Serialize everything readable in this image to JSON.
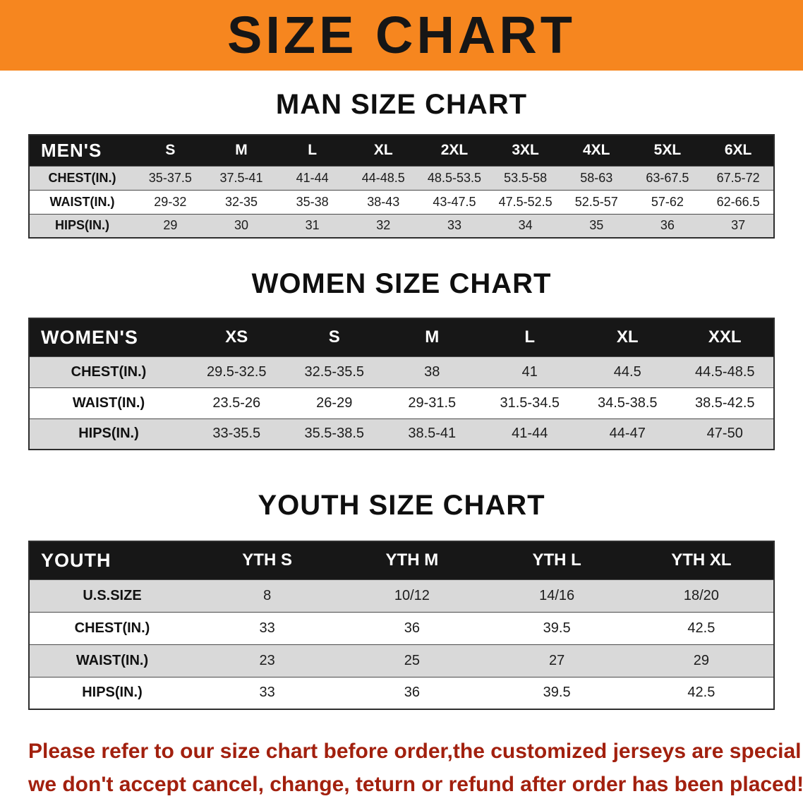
{
  "banner": {
    "title": "SIZE CHART"
  },
  "colors": {
    "banner_bg": "#F6861F",
    "banner_text": "#161616",
    "table_header_bg": "#171717",
    "table_header_text": "#FFFFFF",
    "shaded_row_bg": "#D9D9D9",
    "plain_row_bg": "#FFFFFF",
    "notice_text": "#A2200E"
  },
  "sections": [
    {
      "id": "men",
      "heading": "MAN SIZE CHART",
      "table": {
        "header": [
          "MEN'S",
          "S",
          "M",
          "L",
          "XL",
          "2XL",
          "3XL",
          "4XL",
          "5XL",
          "6XL"
        ],
        "rows": [
          {
            "label": "CHEST(IN.)",
            "values": [
              "35-37.5",
              "37.5-41",
              "41-44",
              "44-48.5",
              "48.5-53.5",
              "53.5-58",
              "58-63",
              "63-67.5",
              "67.5-72"
            ]
          },
          {
            "label": "WAIST(IN.)",
            "values": [
              "29-32",
              "32-35",
              "35-38",
              "38-43",
              "43-47.5",
              "47.5-52.5",
              "52.5-57",
              "57-62",
              "62-66.5"
            ]
          },
          {
            "label": "HIPS(IN.)",
            "values": [
              "29",
              "30",
              "31",
              "32",
              "33",
              "34",
              "35",
              "36",
              "37"
            ]
          }
        ]
      }
    },
    {
      "id": "women",
      "heading": "WOMEN SIZE CHART",
      "table": {
        "header": [
          "WOMEN'S",
          "XS",
          "S",
          "M",
          "L",
          "XL",
          "XXL"
        ],
        "rows": [
          {
            "label": "CHEST(IN.)",
            "values": [
              "29.5-32.5",
              "32.5-35.5",
              "38",
              "41",
              "44.5",
              "44.5-48.5"
            ]
          },
          {
            "label": "WAIST(IN.)",
            "values": [
              "23.5-26",
              "26-29",
              "29-31.5",
              "31.5-34.5",
              "34.5-38.5",
              "38.5-42.5"
            ]
          },
          {
            "label": "HIPS(IN.)",
            "values": [
              "33-35.5",
              "35.5-38.5",
              "38.5-41",
              "41-44",
              "44-47",
              "47-50"
            ]
          }
        ]
      }
    },
    {
      "id": "youth",
      "heading": "YOUTH SIZE CHART",
      "table": {
        "header": [
          "YOUTH",
          "YTH S",
          "YTH M",
          "YTH L",
          "YTH XL"
        ],
        "rows": [
          {
            "label": "U.S.SIZE",
            "values": [
              "8",
              "10/12",
              "14/16",
              "18/20"
            ]
          },
          {
            "label": "CHEST(IN.)",
            "values": [
              "33",
              "36",
              "39.5",
              "42.5"
            ]
          },
          {
            "label": "WAIST(IN.)",
            "values": [
              "23",
              "25",
              "27",
              "29"
            ]
          },
          {
            "label": "HIPS(IN.)",
            "values": [
              "33",
              "36",
              "39.5",
              "42.5"
            ]
          }
        ]
      }
    }
  ],
  "footnote": {
    "line1": "Please refer to our size chart before order,the customized jerseys are special products,",
    "line2": "we don't accept cancel, change, teturn or refund after order has been placed!"
  }
}
